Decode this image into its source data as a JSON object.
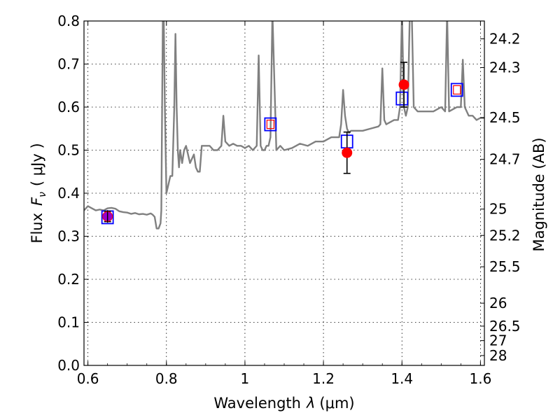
{
  "chart_data": {
    "type": "line",
    "xlabel": "Wavelength",
    "xlabel_symbol": "λ",
    "xlabel_unit": "(μm)",
    "ylabel": "Flux",
    "ylabel_symbol": "F",
    "ylabel_sub": "ν",
    "ylabel_unit": "( μJy )",
    "y2label": "Magnitude (AB)",
    "xlim": [
      0.59,
      1.61
    ],
    "ylim": [
      0.0,
      0.8
    ],
    "grid": true,
    "x_ticks": [
      0.6,
      0.8,
      1.0,
      1.2,
      1.4,
      1.6
    ],
    "x_tick_labels": [
      "0.6",
      "0.8",
      "1",
      "1.2",
      "1.4",
      "1.6"
    ],
    "y_ticks": [
      0.0,
      0.1,
      0.2,
      0.3,
      0.4,
      0.5,
      0.6,
      0.7,
      0.8
    ],
    "y_tick_labels": [
      "0.0",
      "0.1",
      "0.2",
      "0.3",
      "0.4",
      "0.5",
      "0.6",
      "0.7",
      "0.8"
    ],
    "mag_ticks": [
      24.2,
      24.3,
      24.5,
      24.7,
      25,
      25.2,
      25.5,
      26,
      26.5,
      27,
      28
    ],
    "mag_tick_labels": [
      "24.2",
      "24.3",
      "24.5",
      "24.7",
      "25",
      "25.2",
      "25.5",
      "26",
      "26.5",
      "27",
      "28"
    ],
    "model_spectrum": {
      "color": "#808080",
      "x": [
        0.59,
        0.6,
        0.61,
        0.62,
        0.63,
        0.64,
        0.65,
        0.66,
        0.67,
        0.68,
        0.69,
        0.7,
        0.71,
        0.72,
        0.73,
        0.74,
        0.75,
        0.76,
        0.765,
        0.77,
        0.775,
        0.78,
        0.785,
        0.787,
        0.789,
        0.791,
        0.793,
        0.796,
        0.8,
        0.805,
        0.81,
        0.815,
        0.82,
        0.823,
        0.826,
        0.829,
        0.832,
        0.835,
        0.84,
        0.845,
        0.85,
        0.855,
        0.86,
        0.865,
        0.87,
        0.875,
        0.88,
        0.885,
        0.89,
        0.9,
        0.91,
        0.92,
        0.93,
        0.94,
        0.945,
        0.95,
        0.96,
        0.97,
        0.98,
        0.99,
        1.0,
        1.01,
        1.02,
        1.03,
        1.035,
        1.04,
        1.045,
        1.05,
        1.055,
        1.06,
        1.065,
        1.07,
        1.08,
        1.09,
        1.1,
        1.12,
        1.14,
        1.16,
        1.18,
        1.2,
        1.22,
        1.24,
        1.245,
        1.25,
        1.255,
        1.26,
        1.265,
        1.27,
        1.28,
        1.3,
        1.32,
        1.34,
        1.345,
        1.35,
        1.355,
        1.36,
        1.38,
        1.39,
        1.395,
        1.4,
        1.405,
        1.41,
        1.415,
        1.42,
        1.425,
        1.43,
        1.44,
        1.46,
        1.48,
        1.5,
        1.51,
        1.515,
        1.52,
        1.53,
        1.54,
        1.55,
        1.555,
        1.56,
        1.565,
        1.57,
        1.58,
        1.59,
        1.6,
        1.61
      ],
      "y": [
        0.36,
        0.37,
        0.365,
        0.36,
        0.362,
        0.36,
        0.365,
        0.366,
        0.364,
        0.358,
        0.356,
        0.355,
        0.352,
        0.354,
        0.351,
        0.352,
        0.35,
        0.353,
        0.35,
        0.345,
        0.318,
        0.318,
        0.33,
        0.36,
        0.6,
        0.82,
        0.82,
        0.6,
        0.4,
        0.42,
        0.44,
        0.44,
        0.6,
        0.77,
        0.6,
        0.5,
        0.46,
        0.5,
        0.47,
        0.5,
        0.51,
        0.49,
        0.47,
        0.48,
        0.49,
        0.46,
        0.45,
        0.45,
        0.51,
        0.51,
        0.51,
        0.5,
        0.5,
        0.51,
        0.58,
        0.52,
        0.51,
        0.515,
        0.51,
        0.51,
        0.505,
        0.51,
        0.5,
        0.51,
        0.72,
        0.51,
        0.5,
        0.5,
        0.51,
        0.51,
        0.53,
        0.82,
        0.5,
        0.51,
        0.5,
        0.505,
        0.515,
        0.51,
        0.52,
        0.52,
        0.53,
        0.53,
        0.56,
        0.64,
        0.58,
        0.55,
        0.54,
        0.545,
        0.545,
        0.545,
        0.55,
        0.555,
        0.56,
        0.69,
        0.57,
        0.56,
        0.57,
        0.57,
        0.6,
        0.82,
        0.6,
        0.58,
        0.6,
        0.82,
        0.82,
        0.6,
        0.59,
        0.59,
        0.59,
        0.6,
        0.59,
        0.82,
        0.59,
        0.595,
        0.6,
        0.6,
        0.71,
        0.6,
        0.59,
        0.58,
        0.58,
        0.57,
        0.575,
        0.575
      ]
    },
    "observed": {
      "color": "#ff0000",
      "points": [
        {
          "x": 0.65,
          "y": 0.346,
          "yerr": 0.012
        },
        {
          "x": 1.26,
          "y": 0.494,
          "yerr": 0.048
        },
        {
          "x": 1.405,
          "y": 0.652,
          "yerr": 0.052
        }
      ]
    },
    "model_bands": {
      "color": "#0000ff",
      "points": [
        {
          "x": 0.65,
          "y": 0.344
        },
        {
          "x": 1.065,
          "y": 0.56
        },
        {
          "x": 1.26,
          "y": 0.52
        },
        {
          "x": 1.4,
          "y": 0.62
        },
        {
          "x": 1.54,
          "y": 0.64
        }
      ]
    },
    "upper_limits": {
      "color": "#ff0000",
      "points": [
        {
          "x": 1.065,
          "y": 0.56
        },
        {
          "x": 1.54,
          "y": 0.64
        }
      ]
    },
    "overlap_marker": {
      "color": "#9900cc",
      "x": 0.65,
      "y": 0.346
    }
  }
}
